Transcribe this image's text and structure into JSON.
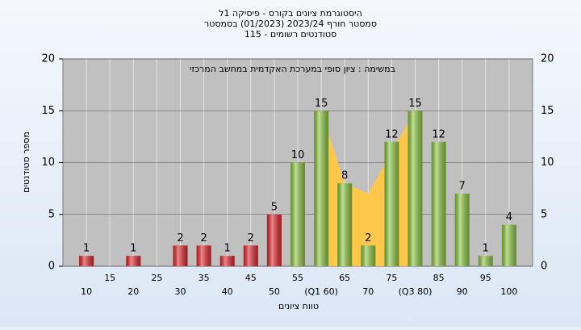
{
  "chart_data": {
    "type": "bar",
    "title": "היסטוגרמת ציונים בקורס - פיסיקה 1ל",
    "subtitle": "סמסטר חורף 2023/24  (01/2023)  בסמסטר",
    "subtitle2": "סטודנטים רשומים - 115",
    "annotation": "במשימה : ציון סופי במערכת האקדמית במחשב המרכזי",
    "x_label": "טווח ציונים",
    "y_label": "מספר סטודנטים",
    "categories": [
      "10",
      "15",
      "20",
      "25",
      "30",
      "35",
      "40",
      "45",
      "50",
      "55",
      "(Q1 60)",
      "65",
      "70",
      "75",
      "(Q3 80)",
      "85",
      "90",
      "95",
      "100"
    ],
    "values": [
      1,
      0,
      1,
      0,
      2,
      2,
      1,
      2,
      5,
      10,
      15,
      8,
      2,
      12,
      15,
      12,
      7,
      1,
      4
    ],
    "colors": [
      "#e0252b",
      "#e0252b",
      "#e0252b",
      "#e0252b",
      "#e0252b",
      "#e0252b",
      "#e0252b",
      "#e0252b",
      "#e0252b",
      "#8cc63f",
      "#8cc63f",
      "#8cc63f",
      "#8cc63f",
      "#8cc63f",
      "#8cc63f",
      "#8cc63f",
      "#8cc63f",
      "#8cc63f",
      "#8cc63f"
    ],
    "band": {
      "color": "#ffc84a",
      "values": [
        null,
        null,
        null,
        null,
        null,
        null,
        null,
        null,
        null,
        null,
        15,
        8,
        7,
        11,
        15,
        null,
        null,
        null,
        null
      ]
    },
    "ylim": [
      0,
      20
    ],
    "yticks": [
      0,
      5,
      10,
      15,
      20
    ],
    "grid": true
  }
}
